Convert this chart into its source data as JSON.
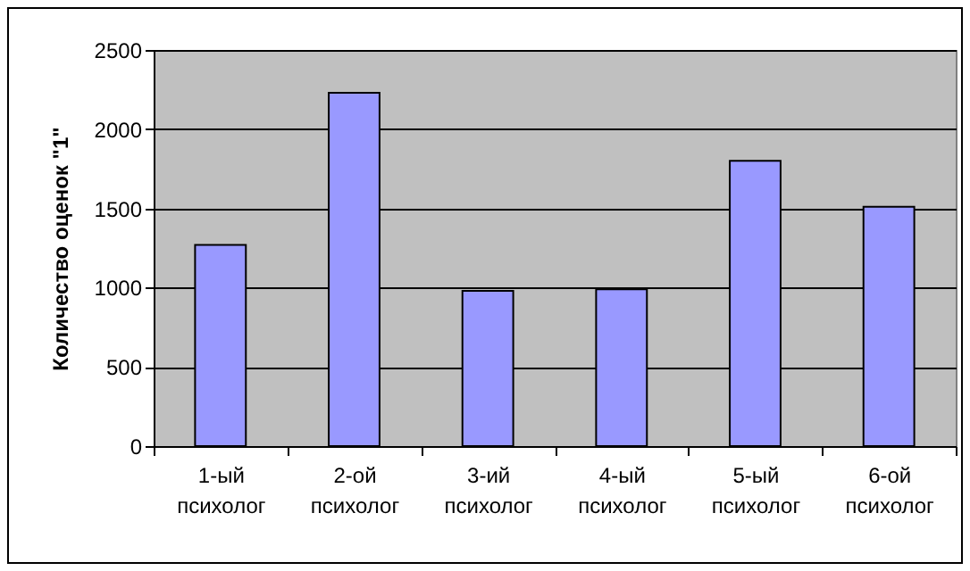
{
  "chart_data": {
    "type": "bar",
    "ylabel": "Количество оценок \"1\"",
    "categories": [
      "1-ый психолог",
      "2-ой психолог",
      "3-ий психолог",
      "4-ый психолог",
      "5-ый психолог",
      "6-ой психолог"
    ],
    "values": [
      1270,
      2230,
      980,
      990,
      1800,
      1510
    ],
    "color": "#9999ff",
    "ylim": [
      0,
      2500
    ],
    "yticks": [
      0,
      500,
      1000,
      1500,
      2000,
      2500
    ],
    "grid": "y"
  }
}
